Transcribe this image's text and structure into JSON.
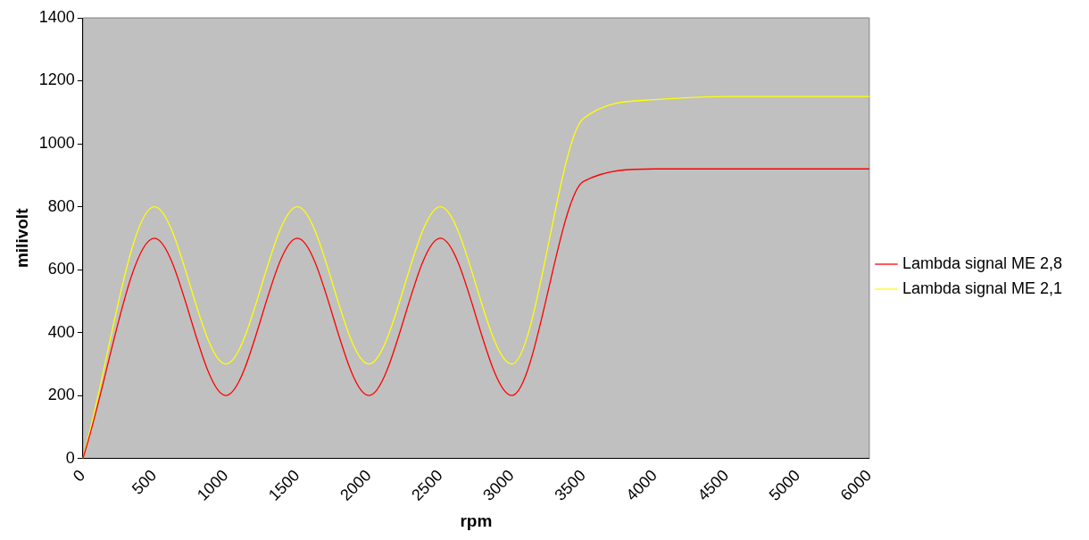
{
  "chart_data": {
    "type": "line",
    "xlabel": "rpm",
    "ylabel": "milivolt",
    "categories": [
      "0",
      "500",
      "1000",
      "1500",
      "2000",
      "2500",
      "3000",
      "3500",
      "4000",
      "4500",
      "5000",
      "6000"
    ],
    "ylim": [
      0,
      1400
    ],
    "yticks": [
      0,
      200,
      400,
      600,
      800,
      1000,
      1200,
      1400
    ],
    "grid": false,
    "legend": "right",
    "marker": "none",
    "line_style": "solid",
    "series": [
      {
        "name": "Lambda signal ME 2,8",
        "color": "#ff0000",
        "values": [
          0,
          700,
          200,
          700,
          200,
          700,
          200,
          880,
          920,
          920,
          920,
          920
        ]
      },
      {
        "name": "Lambda signal ME 2,1",
        "color": "#ffff00",
        "values": [
          0,
          800,
          300,
          800,
          300,
          800,
          300,
          1080,
          1140,
          1150,
          1150,
          1150
        ]
      }
    ]
  }
}
